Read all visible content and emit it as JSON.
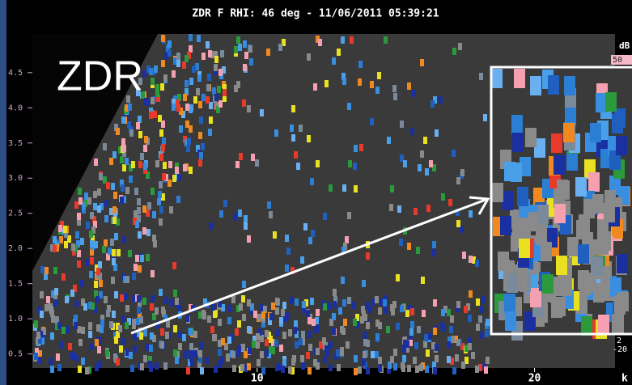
{
  "chart_data": {
    "type": "rhi",
    "title": "ZDR F  RHI: 46 deg  -  11/06/2011 05:39:21",
    "annotation": "ZDR",
    "xlabel": "k",
    "xlim": [
      1.9,
      22.9
    ],
    "xticks": [
      10,
      20
    ],
    "ylim": [
      0.3,
      5.05
    ],
    "yticks": [
      {
        "value": 0.5,
        "label": "0.5"
      },
      {
        "value": 1,
        "label": "1.0"
      },
      {
        "value": 1.5,
        "label": "1.5"
      },
      {
        "value": 2,
        "label": "2.0"
      },
      {
        "value": 2.5,
        "label": "2.5"
      },
      {
        "value": 3,
        "label": "3.0"
      },
      {
        "value": 3.5,
        "label": "3.5"
      },
      {
        "value": 4,
        "label": "4.0"
      },
      {
        "value": 4.5,
        "label": "4.5"
      }
    ],
    "colorbar": {
      "label": "dB",
      "ticks": [
        "50",
        "2",
        "-20"
      ]
    }
  }
}
